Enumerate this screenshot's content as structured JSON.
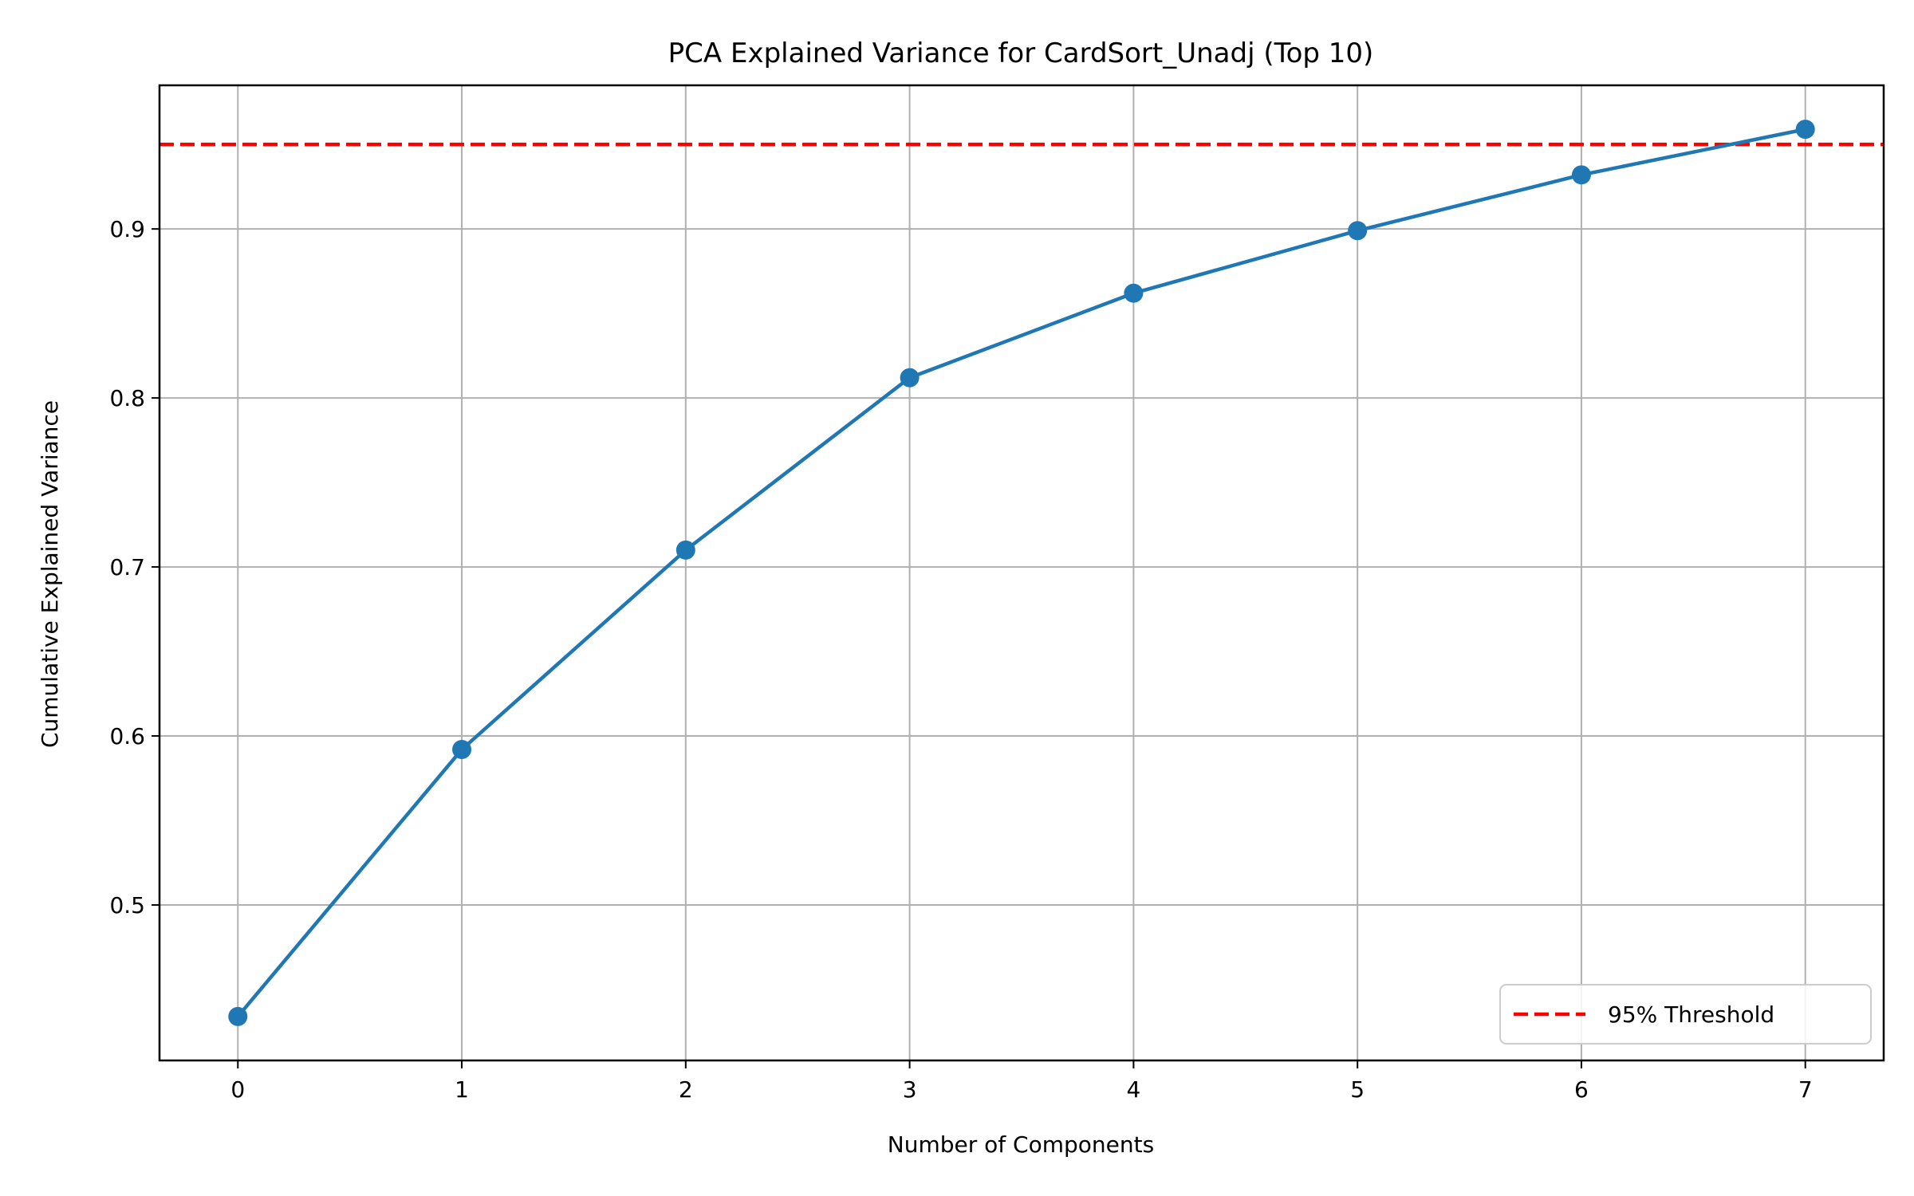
{
  "chart_data": {
    "type": "line",
    "title": "PCA Explained Variance for CardSort_Unadj (Top 10)",
    "xlabel": "Number of Components",
    "ylabel": "Cumulative Explained Variance",
    "x": [
      0,
      1,
      2,
      3,
      4,
      5,
      6,
      7
    ],
    "series": [
      {
        "values": [
          0.434,
          0.592,
          0.71,
          0.812,
          0.862,
          0.899,
          0.932,
          0.959
        ],
        "color": "#1f77b4",
        "marker": "circle"
      }
    ],
    "reference_lines": [
      {
        "name": "95% Threshold",
        "y": 0.95,
        "color": "#ff0000",
        "style": "dashed"
      }
    ],
    "xlim": [
      -0.35,
      7.35
    ],
    "ylim": [
      0.408,
      0.985
    ],
    "xticks": [
      0,
      1,
      2,
      3,
      4,
      5,
      6,
      7
    ],
    "yticks": [
      0.5,
      0.6,
      0.7,
      0.8,
      0.9
    ],
    "ytick_labels": [
      "0.5",
      "0.6",
      "0.7",
      "0.8",
      "0.9"
    ],
    "grid": true,
    "legend": {
      "placement": "bottom-right",
      "entries": [
        "95% Threshold"
      ]
    }
  }
}
